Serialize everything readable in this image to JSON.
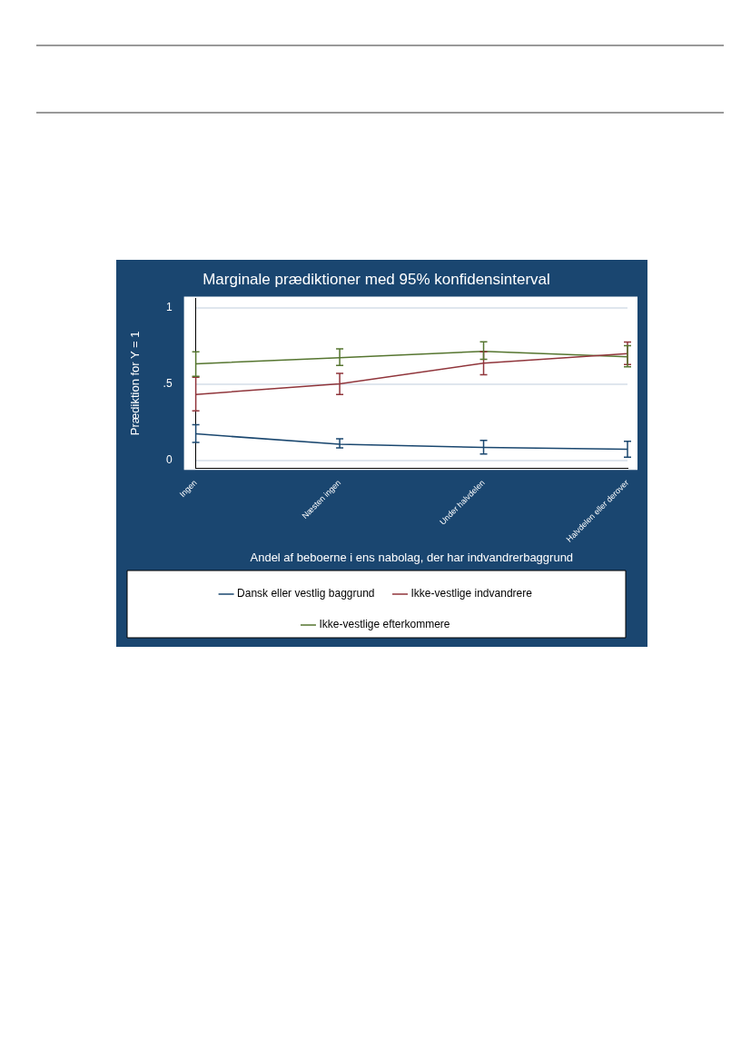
{
  "chart_data": {
    "type": "line",
    "title": "Marginale prædiktioner med 95% konfidensinterval",
    "xlabel": "Andel af beboerne i ens nabolag, der har indvandrerbaggrund",
    "ylabel": "Prædiktion for Y = 1",
    "categories": [
      "Ingen",
      "Næsten ingen",
      "Under halvdelen",
      "Halvdelen eller derover"
    ],
    "series": [
      {
        "name": "Dansk eller vestlig baggrund",
        "color": "#1a476f",
        "values": [
          0.174,
          0.106,
          0.086,
          0.073
        ],
        "errors": [
          [
            0.118,
            0.234
          ],
          [
            0.082,
            0.142
          ],
          [
            0.043,
            0.132
          ],
          [
            0.021,
            0.125
          ]
        ]
      },
      {
        "name": "Ikke-vestlige indvandrere",
        "color": "#90353b",
        "values": [
          0.432,
          0.501,
          0.636,
          0.699
        ],
        "errors": [
          [
            0.325,
            0.544
          ],
          [
            0.432,
            0.569
          ],
          [
            0.56,
            0.71
          ],
          [
            0.627,
            0.774
          ]
        ]
      },
      {
        "name": "Ikke-vestlige efterkommere",
        "color": "#55752f",
        "values": [
          0.632,
          0.672,
          0.714,
          0.678
        ],
        "errors": [
          [
            0.55,
            0.711
          ],
          [
            0.621,
            0.73
          ],
          [
            0.662,
            0.776
          ],
          [
            0.612,
            0.75
          ]
        ]
      }
    ],
    "ylim": [
      -0.05,
      1.06
    ],
    "yticks": [
      0,
      {
        "value": 0.5,
        "label": ".5"
      },
      1
    ],
    "grid": "y",
    "legend": "bottom",
    "line_style": "solid"
  }
}
